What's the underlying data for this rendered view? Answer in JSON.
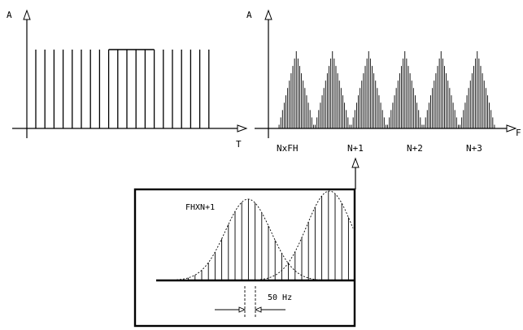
{
  "panel_time": {
    "y_axis_label": "A",
    "x_axis_label": "T",
    "pulse_count": 20,
    "envelope_start_index": 8,
    "envelope_end_index": 13
  },
  "panel_spectrum": {
    "y_axis_label": "A",
    "x_axis_label": "F",
    "tick_labels": [
      "NxFH",
      "N+1",
      "N+2",
      "N+3"
    ],
    "lobe_count": 6,
    "lines_per_lobe": 21
  },
  "panel_detail": {
    "peak_label": "FHXN+1",
    "spacing_label": "50 Hz"
  },
  "colors": {
    "ink": "#000000",
    "background": "#ffffff"
  }
}
